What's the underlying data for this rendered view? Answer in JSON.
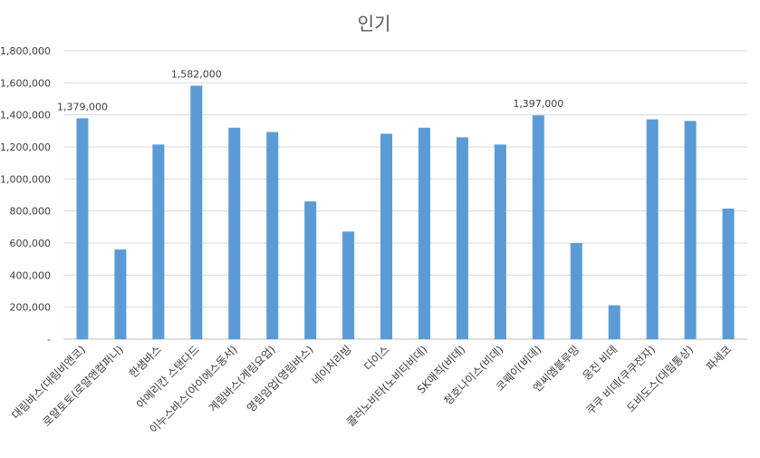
{
  "chart_data": {
    "type": "bar",
    "title": "인기",
    "xlabel": "",
    "ylabel": "",
    "ylim": [
      0,
      1800000
    ],
    "yticks": [
      0,
      200000,
      400000,
      600000,
      800000,
      1000000,
      1200000,
      1400000,
      1600000,
      1800000
    ],
    "ytick_labels": [
      "-",
      "200,000",
      "400,000",
      "600,000",
      "800,000",
      "1,000,000",
      "1,200,000",
      "1,400,000",
      "1,600,000",
      "1,800,000"
    ],
    "grid": true,
    "legend": "none",
    "bar_color": "#5b9bd5",
    "categories": [
      "대림바스(대림비앤코)",
      "로얄토토(로얄앤컴퍼니)",
      "한샘바스",
      "아메리칸 스탠다드",
      "이누스바스(아이에스동서)",
      "계림바스(계림요업)",
      "영림임업(영림바스)",
      "네이처리빙",
      "다이스",
      "콜러노비타(노비타비데)",
      "SK매직(비데)",
      "청호나이스(비데)",
      "코웨이(비데)",
      "엔씨엠블루밍",
      "웅진 비데",
      "쿠쿠 비데(쿠쿠전자)",
      "도비도스(대림통상)",
      "파세코"
    ],
    "values": [
      1379000,
      560000,
      1215000,
      1582000,
      1320000,
      1293000,
      860000,
      672000,
      1282000,
      1320000,
      1260000,
      1215000,
      1397000,
      600000,
      212000,
      1372000,
      1362000,
      815000
    ],
    "data_labels": [
      {
        "index": 0,
        "text": "1,379,000"
      },
      {
        "index": 3,
        "text": "1,582,000"
      },
      {
        "index": 12,
        "text": "1,397,000"
      }
    ]
  }
}
